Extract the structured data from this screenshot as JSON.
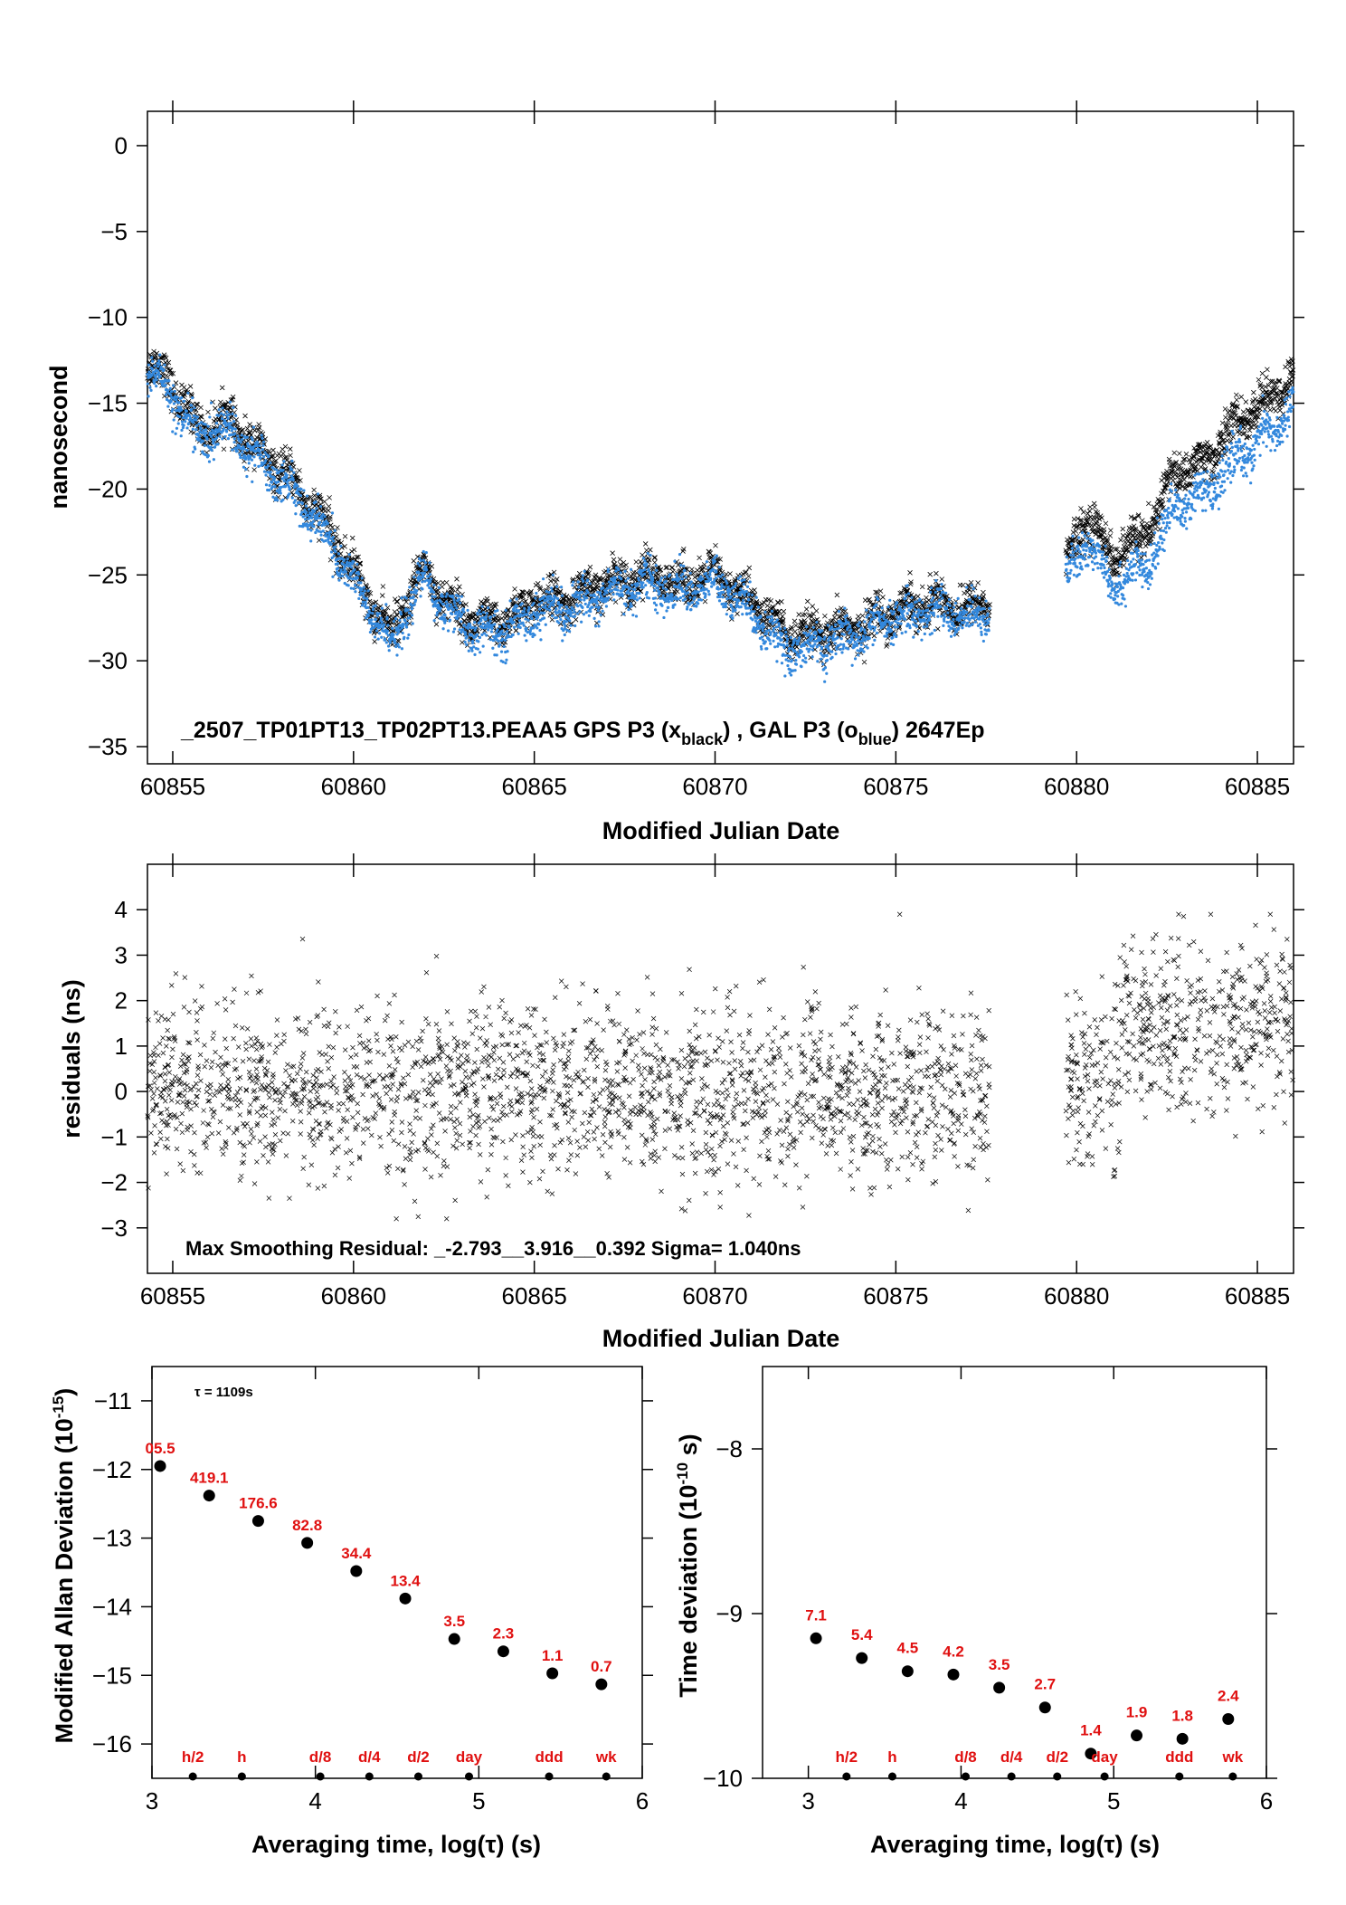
{
  "chart_data": [
    {
      "type": "scatter",
      "xlabel": "Modified Julian Date",
      "ylabel": "nanosecond",
      "xlim": [
        60854.3,
        60886.0
      ],
      "ylim": [
        -36,
        2
      ],
      "xticks": [
        60855,
        60860,
        60865,
        60870,
        60875,
        60880,
        60885
      ],
      "yticks": [
        0,
        -5,
        -10,
        -15,
        -20,
        -25,
        -30,
        -35
      ],
      "annotation_parts": [
        "_2507_TP01PT13_TP02PT13.PEAA5     GPS P3 (x",
        "black",
        ") ,  GAL P3 (o",
        "blue",
        ")  2647Ep"
      ],
      "series": [
        {
          "name": "GPS P3",
          "marker": "x",
          "color": "#000000",
          "trend": [
            [
              60854.3,
              -12.5
            ],
            [
              60855.0,
              -14.0
            ],
            [
              60855.7,
              -16.5
            ],
            [
              60856.5,
              -16.0
            ],
            [
              60857.5,
              -18.0
            ],
            [
              60858.5,
              -20.0
            ],
            [
              60859.5,
              -23.0
            ],
            [
              60860.3,
              -26.0
            ],
            [
              60861.0,
              -28.5
            ],
            [
              60861.5,
              -26.5
            ],
            [
              60862.0,
              -24.5
            ],
            [
              60862.5,
              -26.5
            ],
            [
              60863.5,
              -28.0
            ],
            [
              60864.5,
              -27.5
            ],
            [
              60865.0,
              -26.5
            ],
            [
              60866.0,
              -26.5
            ],
            [
              60867.0,
              -25.5
            ],
            [
              60868.0,
              -25.0
            ],
            [
              60869.0,
              -25.5
            ],
            [
              60870.0,
              -25.0
            ],
            [
              60871.0,
              -26.5
            ],
            [
              60872.0,
              -28.5
            ],
            [
              60873.0,
              -28.5
            ],
            [
              60874.0,
              -28.0
            ],
            [
              60875.0,
              -27.0
            ],
            [
              60876.0,
              -26.5
            ],
            [
              60877.0,
              -27.0
            ],
            [
              60877.6,
              -26.5
            ],
            [
              60879.7,
              -24.5
            ],
            [
              60880.3,
              -21.5
            ],
            [
              60881.0,
              -24.0
            ],
            [
              60882.0,
              -22.5
            ],
            [
              60882.7,
              -19.0
            ],
            [
              60883.5,
              -18.5
            ],
            [
              60884.5,
              -16.0
            ],
            [
              60885.5,
              -14.5
            ],
            [
              60886.0,
              -13.5
            ]
          ]
        },
        {
          "name": "GAL P3",
          "marker": "o",
          "color": "#3388dd",
          "trend": [
            [
              60854.3,
              -13.0
            ],
            [
              60855.0,
              -14.5
            ],
            [
              60855.7,
              -17.0
            ],
            [
              60856.5,
              -16.5
            ],
            [
              60857.5,
              -18.5
            ],
            [
              60858.5,
              -20.5
            ],
            [
              60859.5,
              -23.5
            ],
            [
              60860.3,
              -26.5
            ],
            [
              60861.0,
              -29.0
            ],
            [
              60861.5,
              -27.0
            ],
            [
              60862.0,
              -25.0
            ],
            [
              60862.5,
              -27.0
            ],
            [
              60863.5,
              -28.5
            ],
            [
              60864.5,
              -28.0
            ],
            [
              60865.0,
              -27.0
            ],
            [
              60866.0,
              -27.0
            ],
            [
              60867.0,
              -26.0
            ],
            [
              60868.0,
              -25.5
            ],
            [
              60869.0,
              -26.0
            ],
            [
              60870.0,
              -25.5
            ],
            [
              60871.0,
              -27.0
            ],
            [
              60872.0,
              -29.5
            ],
            [
              60873.0,
              -29.0
            ],
            [
              60874.0,
              -28.5
            ],
            [
              60875.0,
              -27.5
            ],
            [
              60876.0,
              -27.0
            ],
            [
              60877.0,
              -27.5
            ],
            [
              60877.6,
              -27.0
            ],
            [
              60879.7,
              -25.5
            ],
            [
              60880.3,
              -23.0
            ],
            [
              60881.0,
              -25.5
            ],
            [
              60882.0,
              -24.5
            ],
            [
              60882.7,
              -21.0
            ],
            [
              60883.5,
              -20.5
            ],
            [
              60884.5,
              -18.0
            ],
            [
              60885.5,
              -16.5
            ],
            [
              60886.0,
              -15.0
            ]
          ]
        }
      ]
    },
    {
      "type": "scatter",
      "xlabel": "Modified Julian Date",
      "ylabel": "residuals (ns)",
      "xlim": [
        60854.3,
        60886.0
      ],
      "ylim": [
        -4,
        5
      ],
      "xticks": [
        60855,
        60860,
        60865,
        60870,
        60875,
        60880,
        60885
      ],
      "yticks": [
        4,
        3,
        2,
        1,
        0,
        -1,
        -2,
        -3
      ],
      "annotation": "Max Smoothing Residual: _-2.793__3.916__0.392  Sigma= 1.040ns",
      "series": [
        {
          "marker": "x",
          "color": "#000000",
          "segments": [
            [
              60854.3,
              60877.6,
              0.0
            ],
            [
              60879.7,
              60881.2,
              0.3
            ],
            [
              60881.2,
              60886.0,
              1.5
            ]
          ],
          "spread": 1.04
        }
      ]
    },
    {
      "type": "scatter",
      "xlabel_parts": [
        "Averaging time, log(",
        "τ",
        ") (s)"
      ],
      "ylabel_parts": [
        "Modified Allan Deviation (10",
        "-15",
        ")"
      ],
      "xlim": [
        3,
        6
      ],
      "ylim": [
        -16.5,
        -10.5
      ],
      "xticks": [
        3,
        4,
        5,
        6
      ],
      "yticks": [
        -11,
        -12,
        -13,
        -14,
        -15,
        -16
      ],
      "tau_note": "τ = 1109s",
      "points": [
        [
          3.05,
          -11.95
        ],
        [
          3.35,
          -12.38
        ],
        [
          3.65,
          -12.75
        ],
        [
          3.95,
          -13.07
        ],
        [
          4.25,
          -13.48
        ],
        [
          4.55,
          -13.88
        ],
        [
          4.85,
          -14.47
        ],
        [
          5.15,
          -14.65
        ],
        [
          5.45,
          -14.97
        ],
        [
          5.75,
          -15.13
        ]
      ],
      "point_labels": [
        "05.5",
        "419.1",
        "176.6",
        "82.8",
        "34.4",
        "13.4",
        "3.5",
        "2.3",
        "1.1",
        "0.7"
      ],
      "marker_positions": [
        3.25,
        3.55,
        4.03,
        4.33,
        4.63,
        4.94,
        5.43,
        5.78
      ],
      "marker_labels": [
        "h/2",
        "h",
        "d/8",
        "d/4",
        "d/2",
        "day",
        "ddd",
        "wk"
      ]
    },
    {
      "type": "scatter",
      "xlabel_parts": [
        "Averaging time, log(",
        "τ",
        ") (s)"
      ],
      "ylabel_parts": [
        "Time deviation (10",
        "-10",
        " s)"
      ],
      "xlim": [
        2.7,
        6.0
      ],
      "ylim": [
        -10.0,
        -7.5
      ],
      "xticks": [
        3,
        4,
        5,
        6
      ],
      "yticks": [
        -8,
        -9,
        -10
      ],
      "points": [
        [
          3.05,
          -9.15
        ],
        [
          3.35,
          -9.27
        ],
        [
          3.65,
          -9.35
        ],
        [
          3.95,
          -9.37
        ],
        [
          4.25,
          -9.45
        ],
        [
          4.55,
          -9.57
        ],
        [
          4.85,
          -9.85
        ],
        [
          5.15,
          -9.74
        ],
        [
          5.45,
          -9.76
        ],
        [
          5.75,
          -9.64
        ]
      ],
      "point_labels": [
        "7.1",
        "5.4",
        "4.5",
        "4.2",
        "3.5",
        "2.7",
        "1.4",
        "1.9",
        "1.8",
        "2.4"
      ],
      "marker_positions": [
        3.25,
        3.55,
        4.03,
        4.33,
        4.63,
        4.94,
        5.43,
        5.78
      ],
      "marker_labels": [
        "h/2",
        "h",
        "d/8",
        "d/4",
        "d/2",
        "day",
        "ddd",
        "wk"
      ]
    }
  ]
}
